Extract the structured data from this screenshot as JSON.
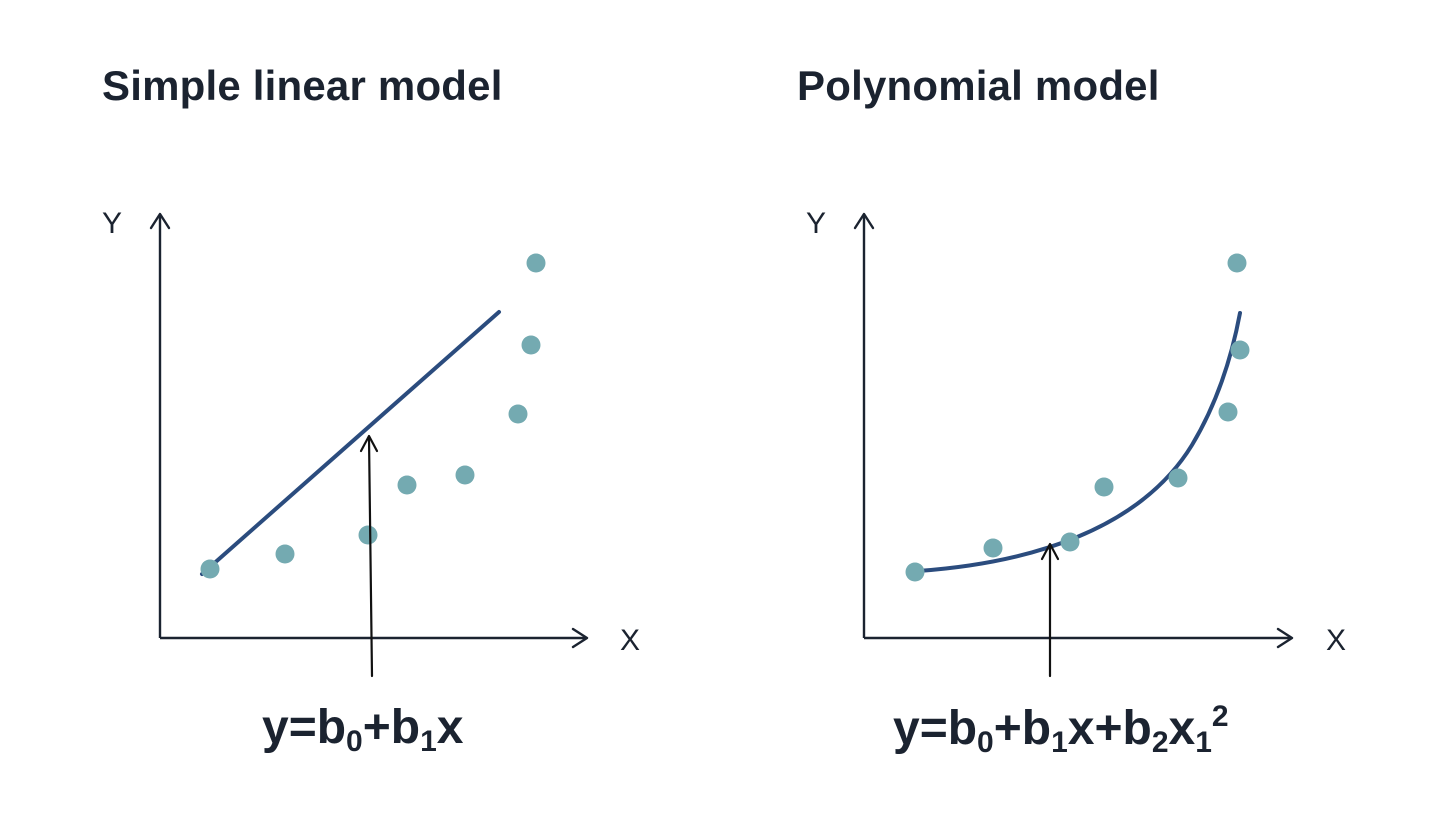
{
  "panels": [
    {
      "title": "Simple linear model",
      "y_axis_label": "Y",
      "x_axis_label": "X",
      "formula": {
        "parts": [
          {
            "text": "y=b",
            "type": "normal"
          },
          {
            "text": "0",
            "type": "sub"
          },
          {
            "text": "+b",
            "type": "normal"
          },
          {
            "text": "1",
            "type": "sub"
          },
          {
            "text": "x",
            "type": "normal"
          }
        ]
      }
    },
    {
      "title": "Polynomial model",
      "y_axis_label": "Y",
      "x_axis_label": "X",
      "formula": {
        "parts": [
          {
            "text": "y=b",
            "type": "normal"
          },
          {
            "text": "0",
            "type": "sub"
          },
          {
            "text": "+b",
            "type": "normal"
          },
          {
            "text": "1",
            "type": "sub"
          },
          {
            "text": "x+b",
            "type": "normal"
          },
          {
            "text": "2",
            "type": "sub"
          },
          {
            "text": "x",
            "type": "normal"
          },
          {
            "text": "1",
            "type": "sub"
          },
          {
            "text": "2",
            "type": "sup"
          }
        ]
      }
    }
  ],
  "colors": {
    "text": "#1b2330",
    "fit_line": "#2b4c7e",
    "points": "#74aab1",
    "pointer_arrow": "#111111"
  }
}
